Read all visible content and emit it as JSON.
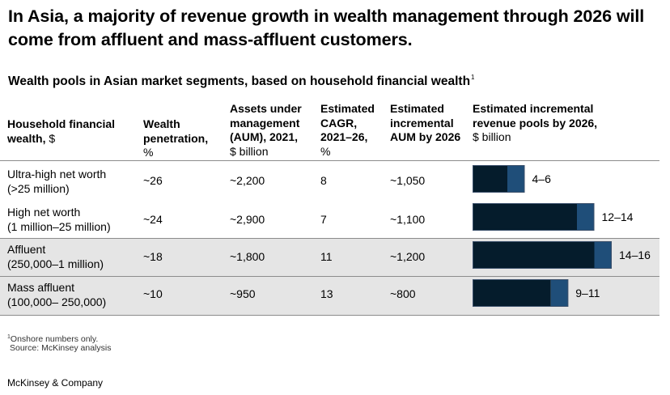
{
  "title": "In Asia, a majority of revenue growth in wealth management through 2026 will come from affluent and mass-affluent customers.",
  "subtitle": "Wealth pools in Asian market segments, based on household financial wealth",
  "subtitle_note": "1",
  "headers": [
    {
      "bold": "Household financial wealth,",
      "unit": "$"
    },
    {
      "bold": "Wealth penetration,",
      "unit": "%"
    },
    {
      "bold": "Assets under management (AUM), 2021,",
      "unit": "$ billion"
    },
    {
      "bold": "Estimated CAGR, 2021–26,",
      "unit": "%"
    },
    {
      "bold": "Estimated incremental AUM by 2026",
      "unit": ""
    },
    {
      "bold": "Estimated incremental revenue pools by 2026,",
      "unit": "$ billion"
    }
  ],
  "rows": [
    {
      "segment": "Ultra-high net worth",
      "range": "(>25 million)",
      "penetration": "~26",
      "aum": "~2,200",
      "cagr": "8",
      "incremental_aum": "~1,050",
      "revenue_label": "4–6",
      "shaded": false
    },
    {
      "segment": "High net worth",
      "range": "(1 million–25 million)",
      "penetration": "~24",
      "aum": "~2,900",
      "cagr": "7",
      "incremental_aum": "~1,100",
      "revenue_label": "12–14",
      "shaded": false
    },
    {
      "segment": "Affluent",
      "range": "(250,000–1 million)",
      "penetration": "~18",
      "aum": "~1,800",
      "cagr": "11",
      "incremental_aum": "~1,200",
      "revenue_label": "14–16",
      "shaded": true
    },
    {
      "segment": "Mass affluent",
      "range": "(100,000– 250,000)",
      "penetration": "~10",
      "aum": "~950",
      "cagr": "13",
      "incremental_aum": "~800",
      "revenue_label": "9–11",
      "shaded": true
    }
  ],
  "chart_data": {
    "type": "bar",
    "orientation": "horizontal",
    "categories": [
      "Ultra-high net worth",
      "High net worth",
      "Affluent",
      "Mass affluent"
    ],
    "series": [
      {
        "values": [
          4,
          12,
          14,
          9
        ]
      },
      {
        "values": [
          2,
          2,
          2,
          2
        ]
      }
    ],
    "stacked": true,
    "data_labels": [
      "4–6",
      "12–14",
      "14–16",
      "9–11"
    ],
    "xlim": [
      0,
      16
    ],
    "colors": {
      "low": "#051c2c",
      "range": "#1f4e79",
      "shade": "#e5e5e5"
    }
  },
  "footnote": "Onshore numbers only.",
  "footnote_mark": "1",
  "source": "Source: McKinsey analysis",
  "brand": "McKinsey & Company"
}
